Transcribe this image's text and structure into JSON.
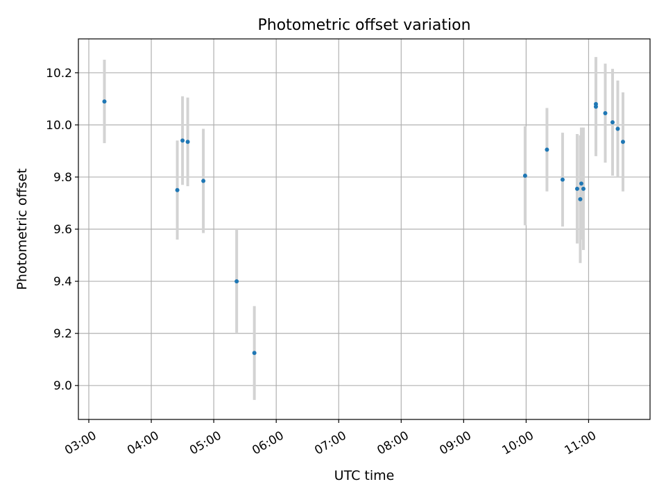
{
  "chart_data": {
    "type": "scatter",
    "title": "Photometric offset variation",
    "xlabel": "UTC time",
    "ylabel": "Photometric offset",
    "x_ticks": [
      "03:00",
      "04:00",
      "05:00",
      "06:00",
      "07:00",
      "08:00",
      "09:00",
      "10:00",
      "11:00"
    ],
    "xlim": [
      "02:50",
      "11:59"
    ],
    "y_ticks": [
      "9.0",
      "9.2",
      "9.4",
      "9.6",
      "9.8",
      "10.0",
      "10.2"
    ],
    "ylim": [
      8.87,
      10.33
    ],
    "grid": true,
    "point_color": "#1f77b4",
    "errorbar_color": "#d3d3d3",
    "points": [
      {
        "x": "03:15",
        "y": 10.09,
        "err": 0.16
      },
      {
        "x": "04:25",
        "y": 9.75,
        "err": 0.19
      },
      {
        "x": "04:30",
        "y": 9.94,
        "err": 0.17
      },
      {
        "x": "04:35",
        "y": 9.935,
        "err": 0.17
      },
      {
        "x": "04:50",
        "y": 9.785,
        "err": 0.2
      },
      {
        "x": "05:22",
        "y": 9.4,
        "err": 0.2
      },
      {
        "x": "05:39",
        "y": 9.125,
        "err": 0.18
      },
      {
        "x": "09:59",
        "y": 9.805,
        "err": 0.19
      },
      {
        "x": "10:20",
        "y": 9.905,
        "err": 0.16
      },
      {
        "x": "10:35",
        "y": 9.79,
        "err": 0.18
      },
      {
        "x": "10:49",
        "y": 9.755,
        "err": 0.21
      },
      {
        "x": "10:52",
        "y": 9.715,
        "err": 0.245
      },
      {
        "x": "10:53",
        "y": 9.775,
        "err": 0.215
      },
      {
        "x": "10:55",
        "y": 9.755,
        "err": 0.235
      },
      {
        "x": "11:07",
        "y": 10.08,
        "err": 0.18
      },
      {
        "x": "11:07",
        "y": 10.07,
        "err": 0.19
      },
      {
        "x": "11:16",
        "y": 10.045,
        "err": 0.19
      },
      {
        "x": "11:23",
        "y": 10.01,
        "err": 0.205
      },
      {
        "x": "11:28",
        "y": 9.985,
        "err": 0.185
      },
      {
        "x": "11:33",
        "y": 9.935,
        "err": 0.19
      }
    ]
  }
}
